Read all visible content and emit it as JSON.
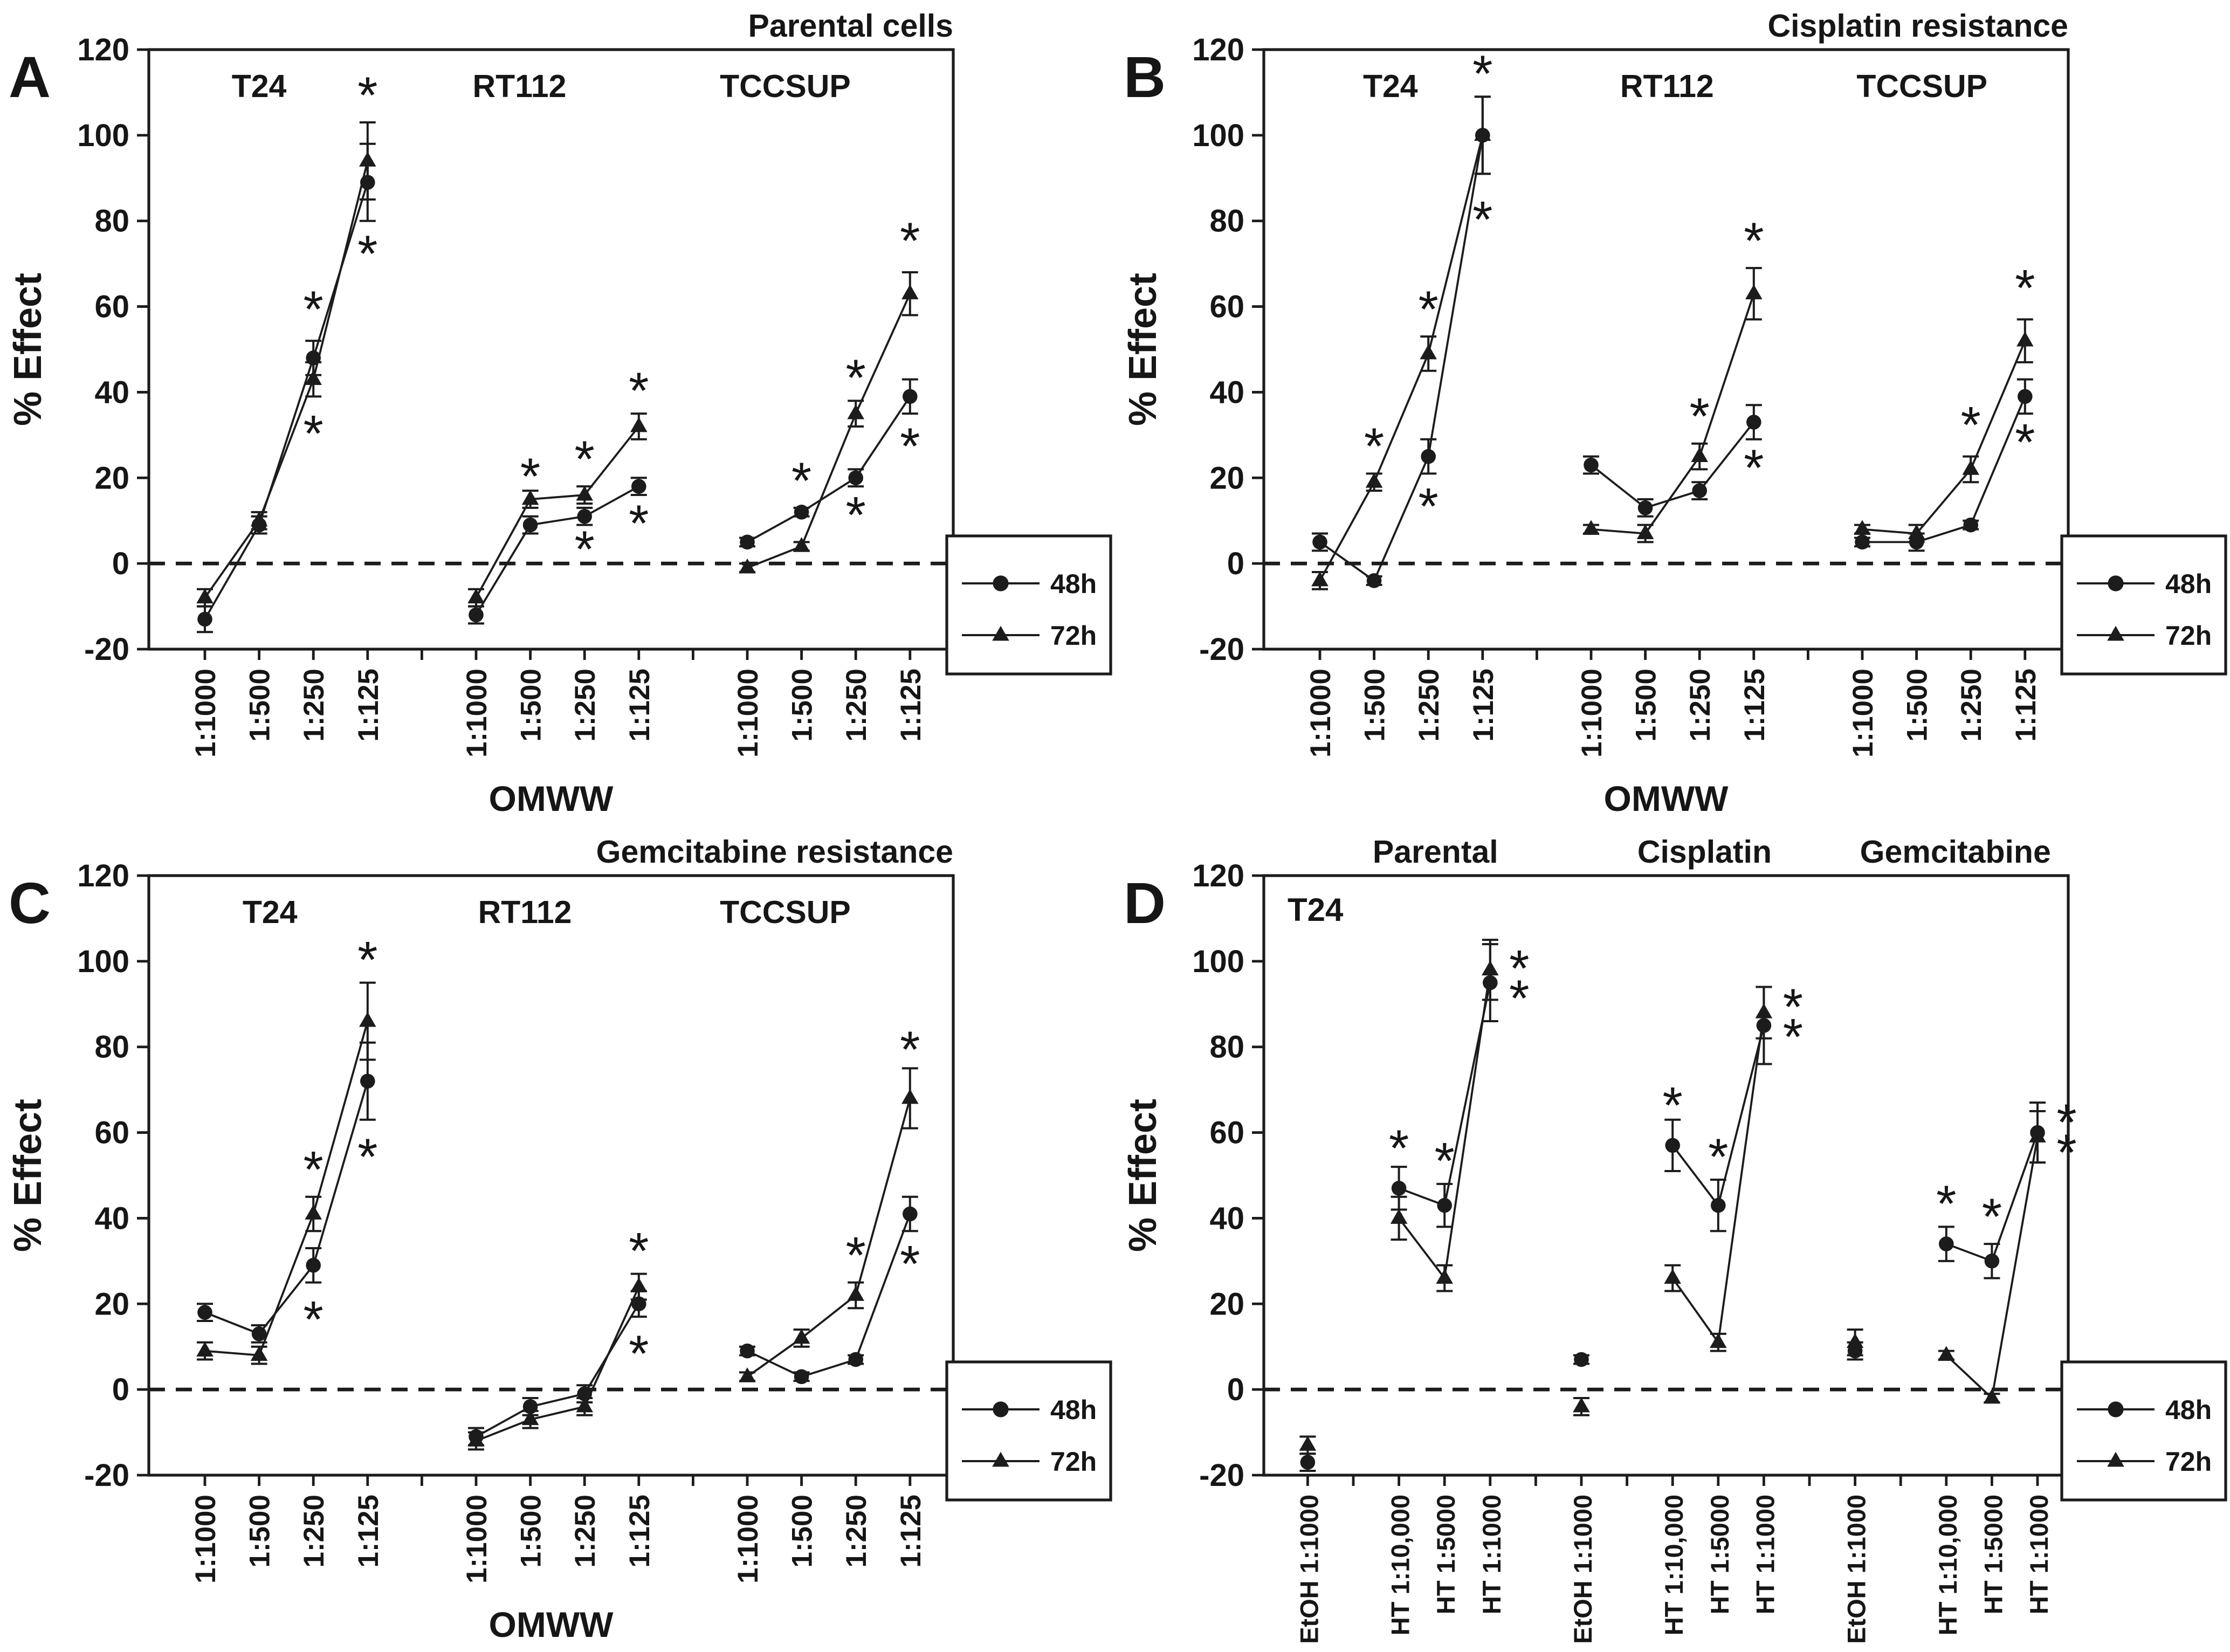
{
  "figure": {
    "background": "#ffffff",
    "text_color": "#161616",
    "line_color": "#1c1c1c",
    "significance_symbol": "*",
    "legend": {
      "items": [
        {
          "label": "48h",
          "marker": "circle"
        },
        {
          "label": "72h",
          "marker": "triangle"
        }
      ]
    }
  },
  "chart_data": [
    {
      "type": "line",
      "panel_label": "A",
      "title": "Parental cells",
      "xlabel": "OMWW",
      "ylabel": "% Effect",
      "ylim": [
        -20,
        120
      ],
      "yticks": [
        120,
        100,
        80,
        60,
        40,
        20,
        0,
        -20
      ],
      "zero_line": "dashed",
      "grid": false,
      "slot_count": 14,
      "legend_labels": [
        "48h",
        "72h"
      ],
      "inside_label": "",
      "groups": [
        {
          "name": "T24",
          "name_slot": 1.0,
          "name_position": "inside",
          "slots": [
            0,
            1,
            2,
            3
          ],
          "categories": [
            "1:1000",
            "1:500",
            "1:250",
            "1:125"
          ],
          "connect": [
            0,
            1,
            2,
            3
          ],
          "series": [
            {
              "name": "48h",
              "marker": "circle",
              "values": [
                -13,
                9,
                48,
                89
              ],
              "errors": [
                3,
                2,
                4,
                9
              ]
            },
            {
              "name": "72h",
              "marker": "triangle",
              "values": [
                -8,
                10,
                43,
                94
              ],
              "errors": [
                2,
                2,
                4,
                9
              ]
            }
          ],
          "stars": [
            {
              "slot": 2,
              "y": 60
            },
            {
              "slot": 2,
              "y": 31
            },
            {
              "slot": 3,
              "y": 110
            },
            {
              "slot": 3,
              "y": 73
            }
          ]
        },
        {
          "name": "RT112",
          "name_slot": 5.8,
          "name_position": "inside",
          "slots": [
            5,
            6,
            7,
            8
          ],
          "categories": [
            "1:1000",
            "1:500",
            "1:250",
            "1:125"
          ],
          "connect": [
            0,
            1,
            2,
            3
          ],
          "series": [
            {
              "name": "48h",
              "marker": "circle",
              "values": [
                -12,
                9,
                11,
                18
              ],
              "errors": [
                2,
                2,
                2,
                2
              ]
            },
            {
              "name": "72h",
              "marker": "triangle",
              "values": [
                -8,
                15,
                16,
                32
              ],
              "errors": [
                2,
                2,
                2,
                3
              ]
            }
          ],
          "stars": [
            {
              "slot": 6,
              "y": 21
            },
            {
              "slot": 7,
              "y": 25
            },
            {
              "slot": 7,
              "y": 4
            },
            {
              "slot": 8,
              "y": 41
            },
            {
              "slot": 8,
              "y": 10
            }
          ]
        },
        {
          "name": "TCCSUP",
          "name_slot": 10.7,
          "name_position": "inside",
          "slots": [
            10,
            11,
            12,
            13
          ],
          "categories": [
            "1:1000",
            "1:500",
            "1:250",
            "1:125"
          ],
          "connect": [
            0,
            1,
            2,
            3
          ],
          "series": [
            {
              "name": "48h",
              "marker": "circle",
              "values": [
                5,
                12,
                20,
                39
              ],
              "errors": [
                1,
                1,
                2,
                4
              ]
            },
            {
              "name": "72h",
              "marker": "triangle",
              "values": [
                -1,
                4,
                35,
                63
              ],
              "errors": [
                1,
                1,
                3,
                5
              ]
            }
          ],
          "stars": [
            {
              "slot": 11,
              "y": 20
            },
            {
              "slot": 12,
              "y": 44
            },
            {
              "slot": 12,
              "y": 12
            },
            {
              "slot": 13,
              "y": 76
            },
            {
              "slot": 13,
              "y": 28
            }
          ]
        }
      ]
    },
    {
      "type": "line",
      "panel_label": "B",
      "title": "Cisplatin resistance",
      "xlabel": "OMWW",
      "ylabel": "% Effect",
      "ylim": [
        -20,
        120
      ],
      "yticks": [
        120,
        100,
        80,
        60,
        40,
        20,
        0,
        -20
      ],
      "zero_line": "dashed",
      "grid": false,
      "slot_count": 14,
      "legend_labels": [
        "48h",
        "72h"
      ],
      "inside_label": "",
      "groups": [
        {
          "name": "T24",
          "name_slot": 1.3,
          "name_position": "inside",
          "slots": [
            0,
            1,
            2,
            3
          ],
          "categories": [
            "1:1000",
            "1:500",
            "1:250",
            "1:125"
          ],
          "connect": [
            0,
            1,
            2,
            3
          ],
          "series": [
            {
              "name": "48h",
              "marker": "circle",
              "values": [
                5,
                -4,
                25,
                100
              ],
              "errors": [
                2,
                1,
                4,
                9
              ]
            },
            {
              "name": "72h",
              "marker": "triangle",
              "values": [
                -4,
                19,
                49,
                100
              ],
              "errors": [
                2,
                2,
                4,
                9
              ]
            }
          ],
          "stars": [
            {
              "slot": 1,
              "y": 28
            },
            {
              "slot": 2,
              "y": 60
            },
            {
              "slot": 2,
              "y": 14
            },
            {
              "slot": 3,
              "y": 115
            },
            {
              "slot": 3,
              "y": 81
            }
          ]
        },
        {
          "name": "RT112",
          "name_slot": 6.4,
          "name_position": "inside",
          "slots": [
            5,
            6,
            7,
            8
          ],
          "categories": [
            "1:1000",
            "1:500",
            "1:250",
            "1:125"
          ],
          "connect": [
            0,
            1,
            2,
            3
          ],
          "series": [
            {
              "name": "48h",
              "marker": "circle",
              "values": [
                23,
                13,
                17,
                33
              ],
              "errors": [
                2,
                2,
                2,
                4
              ]
            },
            {
              "name": "72h",
              "marker": "triangle",
              "values": [
                8,
                7,
                25,
                63
              ],
              "errors": [
                1,
                2,
                3,
                6
              ]
            }
          ],
          "stars": [
            {
              "slot": 7,
              "y": 35
            },
            {
              "slot": 8,
              "y": 76
            },
            {
              "slot": 8,
              "y": 23
            }
          ]
        },
        {
          "name": "TCCSUP",
          "name_slot": 11.1,
          "name_position": "inside",
          "slots": [
            10,
            11,
            12,
            13
          ],
          "categories": [
            "1:1000",
            "1:500",
            "1:250",
            "1:125"
          ],
          "connect": [
            0,
            1,
            2,
            3
          ],
          "series": [
            {
              "name": "48h",
              "marker": "circle",
              "values": [
                5,
                5,
                9,
                39
              ],
              "errors": [
                1,
                2,
                1,
                4
              ]
            },
            {
              "name": "72h",
              "marker": "triangle",
              "values": [
                8,
                7,
                22,
                52
              ],
              "errors": [
                1,
                2,
                3,
                5
              ]
            }
          ],
          "stars": [
            {
              "slot": 12,
              "y": 33
            },
            {
              "slot": 13,
              "y": 65
            },
            {
              "slot": 13,
              "y": 29
            }
          ]
        }
      ]
    },
    {
      "type": "line",
      "panel_label": "C",
      "title": "Gemcitabine resistance",
      "xlabel": "OMWW",
      "ylabel": "% Effect",
      "ylim": [
        -20,
        120
      ],
      "yticks": [
        120,
        100,
        80,
        60,
        40,
        20,
        0,
        -20
      ],
      "zero_line": "dashed",
      "grid": false,
      "slot_count": 14,
      "legend_labels": [
        "48h",
        "72h"
      ],
      "inside_label": "",
      "groups": [
        {
          "name": "T24",
          "name_slot": 1.2,
          "name_position": "inside",
          "slots": [
            0,
            1,
            2,
            3
          ],
          "categories": [
            "1:1000",
            "1:500",
            "1:250",
            "1:125"
          ],
          "connect": [
            0,
            1,
            2,
            3
          ],
          "series": [
            {
              "name": "48h",
              "marker": "circle",
              "values": [
                18,
                13,
                29,
                72
              ],
              "errors": [
                2,
                2,
                4,
                9
              ]
            },
            {
              "name": "72h",
              "marker": "triangle",
              "values": [
                9,
                8,
                41,
                86
              ],
              "errors": [
                2,
                2,
                4,
                9
              ]
            }
          ],
          "stars": [
            {
              "slot": 2,
              "y": 52
            },
            {
              "slot": 2,
              "y": 17
            },
            {
              "slot": 3,
              "y": 101
            },
            {
              "slot": 3,
              "y": 55
            }
          ]
        },
        {
          "name": "RT112",
          "name_slot": 5.9,
          "name_position": "inside",
          "slots": [
            5,
            6,
            7,
            8
          ],
          "categories": [
            "1:1000",
            "1:500",
            "1:250",
            "1:125"
          ],
          "connect": [
            0,
            1,
            2,
            3
          ],
          "series": [
            {
              "name": "48h",
              "marker": "circle",
              "values": [
                -11,
                -4,
                -1,
                20
              ],
              "errors": [
                2,
                2,
                2,
                3
              ]
            },
            {
              "name": "72h",
              "marker": "triangle",
              "values": [
                -12,
                -7,
                -4,
                24
              ],
              "errors": [
                2,
                2,
                2,
                3
              ]
            }
          ],
          "stars": [
            {
              "slot": 8,
              "y": 33
            },
            {
              "slot": 8,
              "y": 9
            }
          ]
        },
        {
          "name": "TCCSUP",
          "name_slot": 10.7,
          "name_position": "inside",
          "slots": [
            10,
            11,
            12,
            13
          ],
          "categories": [
            "1:1000",
            "1:500",
            "1:250",
            "1:125"
          ],
          "connect": [
            0,
            1,
            2,
            3
          ],
          "series": [
            {
              "name": "48h",
              "marker": "circle",
              "values": [
                9,
                3,
                7,
                41
              ],
              "errors": [
                1,
                1,
                1,
                4
              ]
            },
            {
              "name": "72h",
              "marker": "triangle",
              "values": [
                3,
                12,
                22,
                68
              ],
              "errors": [
                1,
                2,
                3,
                7
              ]
            }
          ],
          "stars": [
            {
              "slot": 12,
              "y": 32
            },
            {
              "slot": 13,
              "y": 80
            },
            {
              "slot": 13,
              "y": 30
            }
          ]
        }
      ]
    },
    {
      "type": "line",
      "panel_label": "D",
      "title": "",
      "xlabel": "",
      "ylabel": "% Effect",
      "ylim": [
        -20,
        120
      ],
      "yticks": [
        120,
        100,
        80,
        60,
        40,
        20,
        0,
        -20
      ],
      "zero_line": "dashed",
      "grid": false,
      "slot_count": 17,
      "legend_labels": [
        "48h",
        "72h"
      ],
      "inside_label": "T24",
      "groups": [
        {
          "name": "Parental",
          "name_slot": 2.8,
          "name_position": "above",
          "slots": [
            0,
            2,
            3,
            4
          ],
          "categories": [
            "EtOH 1:1000",
            "HT 1:10,000",
            "HT 1:5000",
            "HT 1:1000"
          ],
          "connect": [
            1,
            2,
            3
          ],
          "series": [
            {
              "name": "48h",
              "marker": "circle",
              "values": [
                -17,
                47,
                43,
                95
              ],
              "errors": [
                2,
                5,
                5,
                9
              ]
            },
            {
              "name": "72h",
              "marker": "triangle",
              "values": [
                -13,
                40,
                26,
                98
              ],
              "errors": [
                2,
                5,
                3,
                7
              ]
            }
          ],
          "stars": [
            {
              "slot": 2,
              "y": 57
            },
            {
              "slot": 3,
              "y": 54
            },
            {
              "slot": 4,
              "y": 99,
              "side": "right"
            },
            {
              "slot": 4,
              "y": 92,
              "side": "right"
            }
          ]
        },
        {
          "name": "Cisplatin",
          "name_slot": 8.7,
          "name_position": "above",
          "slots": [
            6,
            8,
            9,
            10
          ],
          "categories": [
            "EtOH 1:1000",
            "HT 1:10,000",
            "HT 1:5000",
            "HT 1:1000"
          ],
          "connect": [
            1,
            2,
            3
          ],
          "series": [
            {
              "name": "48h",
              "marker": "circle",
              "values": [
                7,
                57,
                43,
                85
              ],
              "errors": [
                1,
                6,
                6,
                9
              ]
            },
            {
              "name": "72h",
              "marker": "triangle",
              "values": [
                -4,
                26,
                11,
                88
              ],
              "errors": [
                2,
                3,
                2,
                6
              ]
            }
          ],
          "stars": [
            {
              "slot": 8,
              "y": 67
            },
            {
              "slot": 9,
              "y": 55
            },
            {
              "slot": 10,
              "y": 90,
              "side": "right"
            },
            {
              "slot": 10,
              "y": 83,
              "side": "right"
            }
          ]
        },
        {
          "name": "Gemcitabine",
          "name_slot": 14.2,
          "name_position": "above",
          "slots": [
            12,
            14,
            15,
            16
          ],
          "categories": [
            "EtOH 1:1000",
            "HT 1:10,000",
            "HT 1:5000",
            "HT 1:1000"
          ],
          "connect": [
            1,
            2,
            3
          ],
          "series": [
            {
              "name": "48h",
              "marker": "circle",
              "values": [
                9,
                34,
                30,
                60
              ],
              "errors": [
                2,
                4,
                4,
                7
              ]
            },
            {
              "name": "72h",
              "marker": "triangle",
              "values": [
                11,
                8,
                -2,
                59
              ],
              "errors": [
                3,
                1,
                1,
                6
              ]
            }
          ],
          "stars": [
            {
              "slot": 14,
              "y": 44
            },
            {
              "slot": 15,
              "y": 41
            },
            {
              "slot": 16,
              "y": 63,
              "side": "right"
            },
            {
              "slot": 16,
              "y": 56,
              "side": "right"
            }
          ]
        }
      ]
    }
  ]
}
